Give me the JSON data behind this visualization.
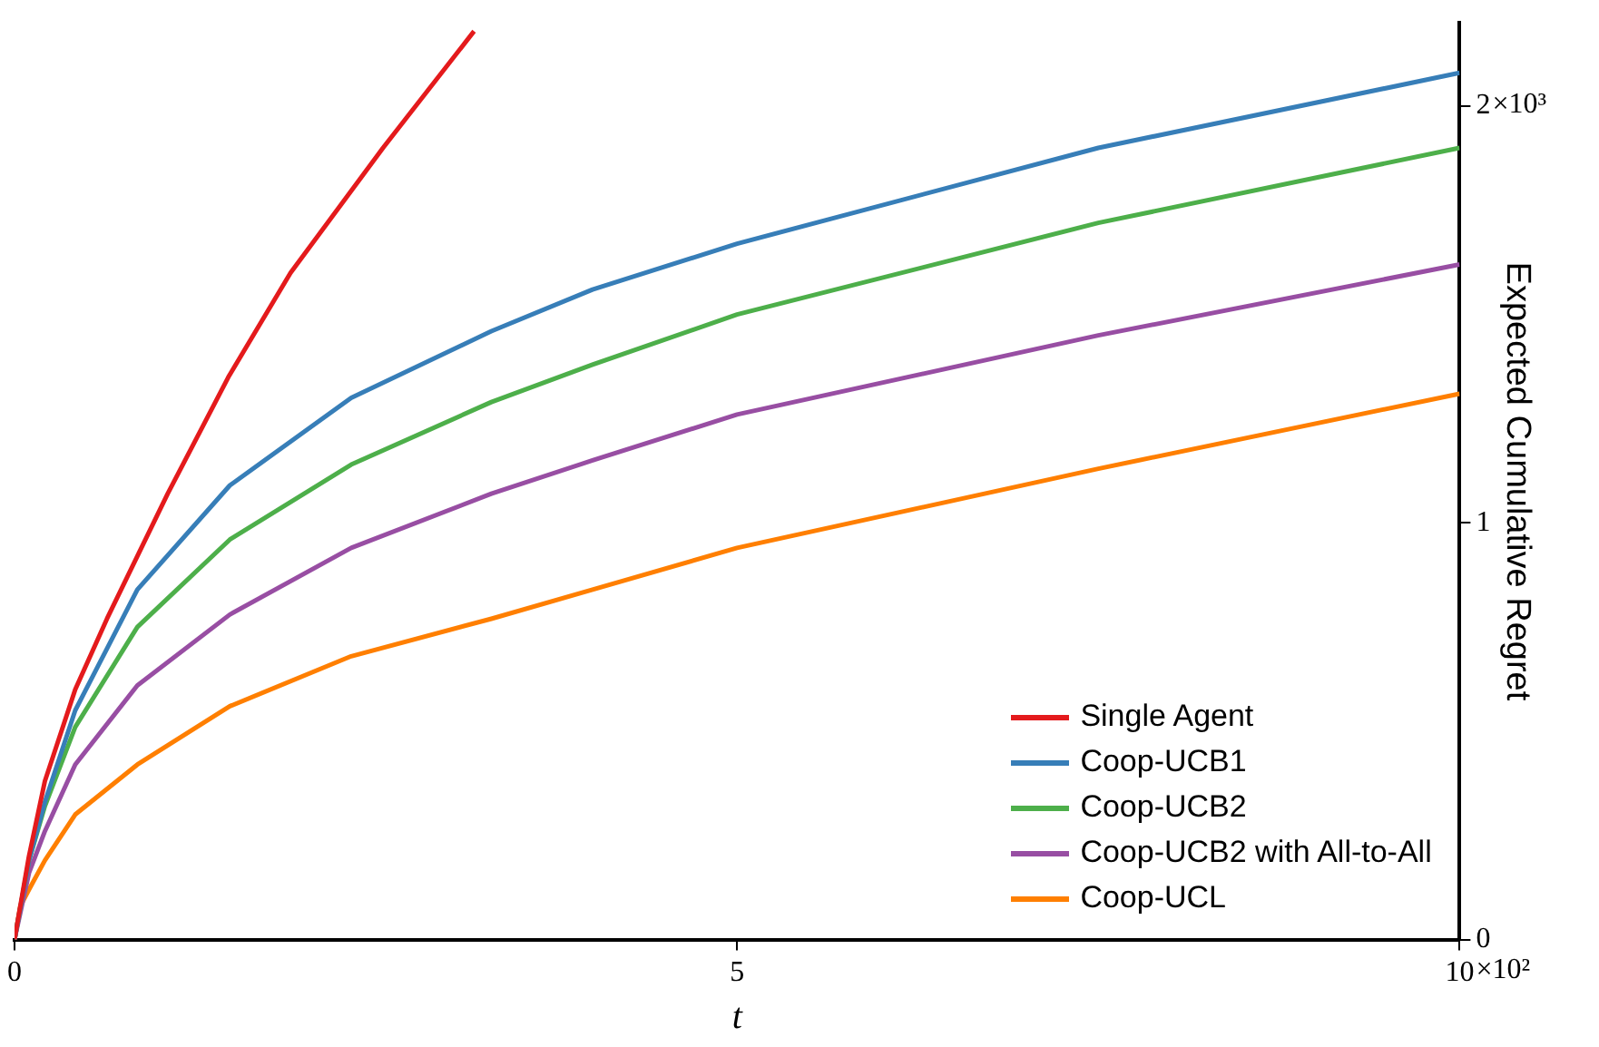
{
  "chart_data": {
    "type": "line",
    "xlabel": "t",
    "ylabel": "Expected Cumulative Regret",
    "xlim": [
      0,
      10
    ],
    "xticks": [
      0,
      5,
      10
    ],
    "ylim": [
      0,
      2.2
    ],
    "yticks": [
      0,
      1,
      2
    ],
    "annotations": [
      "×10²",
      "×10³"
    ],
    "grid": false,
    "legend": "bottom right",
    "marker": "none",
    "line_style": "solid",
    "series": [
      {
        "name": "Single Agent",
        "color": "#e41a1c",
        "x": [
          0,
          0.1,
          0.21,
          0.42,
          0.64,
          1.06,
          1.48,
          1.91,
          2.55,
          3.18
        ],
        "values": [
          0,
          0.2,
          0.38,
          0.6,
          0.77,
          1.07,
          1.35,
          1.6,
          1.9,
          2.18
        ]
      },
      {
        "name": "Coop-UCB1",
        "color": "#377eb8",
        "x": [
          0,
          0.1,
          0.21,
          0.42,
          0.85,
          1.49,
          2.33,
          3.3,
          4,
          5,
          7.5,
          10
        ],
        "values": [
          0,
          0.19,
          0.33,
          0.55,
          0.84,
          1.09,
          1.3,
          1.46,
          1.56,
          1.67,
          1.9,
          2.08
        ]
      },
      {
        "name": "Coop-UCB2",
        "color": "#4daf4a",
        "x": [
          0,
          0.1,
          0.21,
          0.42,
          0.85,
          1.49,
          2.33,
          3.3,
          4,
          5,
          7.5,
          10
        ],
        "values": [
          0,
          0.19,
          0.32,
          0.51,
          0.75,
          0.96,
          1.14,
          1.29,
          1.38,
          1.5,
          1.72,
          1.9
        ]
      },
      {
        "name": "Coop-UCB2 with All-to-All",
        "color": "#984ea3",
        "x": [
          0,
          0.1,
          0.21,
          0.42,
          0.85,
          1.49,
          2.33,
          3.3,
          4,
          5,
          7.5,
          10
        ],
        "values": [
          0,
          0.16,
          0.26,
          0.42,
          0.61,
          0.78,
          0.94,
          1.07,
          1.15,
          1.26,
          1.45,
          1.62
        ]
      },
      {
        "name": "Coop-UCL",
        "color": "#ff7f00",
        "x": [
          0,
          0.04,
          0.1,
          0.21,
          0.42,
          0.85,
          1.49,
          2.33,
          3.3,
          4,
          5,
          7.5,
          10
        ],
        "values": [
          0,
          0.08,
          0.12,
          0.19,
          0.3,
          0.42,
          0.56,
          0.68,
          0.77,
          0.84,
          0.94,
          1.13,
          1.31
        ]
      }
    ]
  }
}
